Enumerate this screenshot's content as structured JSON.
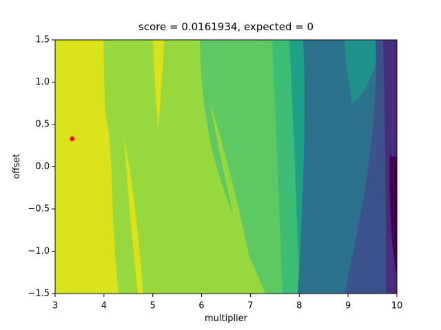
{
  "chart_data": {
    "type": "contour",
    "title": "score = 0.0161934, expected = 0",
    "x_label": "multiplier",
    "y_label": "offset",
    "xlim": [
      3,
      10
    ],
    "ylim": [
      -1.5,
      1.5
    ],
    "xticks": [
      3,
      4,
      5,
      6,
      7,
      8,
      9,
      10
    ],
    "yticks": [
      {
        "value": -1.5,
        "label": "−1.5"
      },
      {
        "value": -1.0,
        "label": "−1.0"
      },
      {
        "value": -0.5,
        "label": "−0.5"
      },
      {
        "value": 0.0,
        "label": "0.0"
      },
      0.5,
      {
        "value": 1.0,
        "label": "1.0"
      },
      1.5
    ],
    "points": {
      "x": [
        3.35
      ],
      "values": [
        0.33
      ],
      "color": "red"
    }
  }
}
